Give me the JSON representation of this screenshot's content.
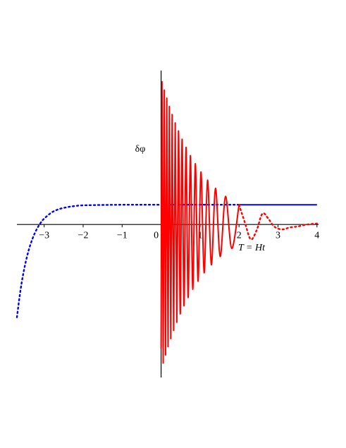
{
  "chart_data": {
    "type": "line",
    "y_label": "δφ",
    "x_label": "T = Ht",
    "xlim": [
      -3.7,
      4.04
    ],
    "ylim": [
      -7.75,
      7.8
    ],
    "xticks": [
      {
        "value": -3,
        "label": "−3"
      },
      {
        "value": -2,
        "label": "−2"
      },
      {
        "value": -1,
        "label": "−1"
      },
      0,
      1,
      2,
      3,
      4
    ],
    "series": [
      {
        "color": "#0000ff",
        "dash": "dotted",
        "x": [
          -3.7,
          -3.6,
          -3.5,
          -3.4,
          -3.3,
          -3.2,
          -3.1,
          -3.0,
          -2.8,
          -2.6,
          -2.4,
          -2.2,
          -2.0,
          -1.5,
          -1,
          0,
          1,
          2
        ],
        "values": [
          -4.7,
          -3.22,
          -2.13,
          -1.32,
          -0.72,
          -0.27,
          0.06,
          0.3,
          0.62,
          0.79,
          0.88,
          0.94,
          0.97,
          0.99,
          1,
          1,
          1,
          1
        ]
      },
      {
        "color": "#0000ff",
        "dash": "solid",
        "x": [
          2,
          4
        ],
        "values": [
          1,
          1
        ]
      },
      {
        "color": "#ff0000",
        "dash": "solid",
        "x": [
          0,
          0.023,
          0.053,
          0.083,
          0.114,
          0.146,
          0.178,
          0.212,
          0.248,
          0.284,
          0.322,
          0.362,
          0.403,
          0.446,
          0.491,
          0.538,
          0.587,
          0.639,
          0.693,
          0.751,
          0.812,
          0.878,
          0.947,
          1.022,
          1.104,
          1.192,
          1.289,
          1.396,
          1.516,
          1.653,
          1.812,
          2.0
        ],
        "values": [
          -6.3,
          7.23,
          -7.02,
          6.81,
          -6.61,
          6.4,
          -6.19,
          5.98,
          -5.78,
          5.57,
          -5.36,
          5.15,
          -4.95,
          4.74,
          -4.53,
          4.32,
          -4.12,
          3.91,
          -3.7,
          3.49,
          -3.28,
          3.08,
          -2.87,
          2.66,
          -2.45,
          2.25,
          -2.04,
          1.83,
          -1.62,
          1.42,
          -1.21,
          1.0
        ]
      },
      {
        "color": "#ff0000",
        "dash": "dotted",
        "x": [
          2,
          2.15,
          2.3,
          2.45,
          2.6,
          2.75,
          2.9,
          3.1,
          3.3,
          3.5,
          3.75,
          4
        ],
        "values": [
          1,
          0.1,
          -0.75,
          -0.3,
          0.55,
          0.3,
          -0.1,
          -0.25,
          -0.15,
          -0.1,
          0,
          0.05
        ]
      }
    ]
  }
}
